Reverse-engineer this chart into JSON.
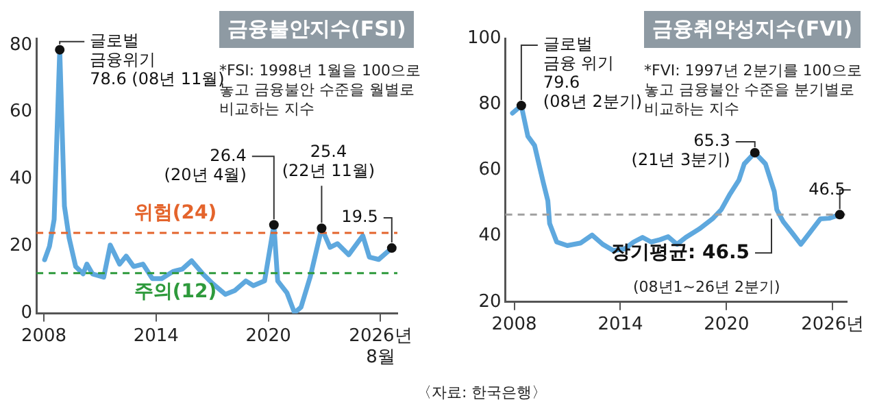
{
  "chart_data": [
    {
      "type": "line",
      "title": "금융불안지수(FSI)",
      "xlim": [
        2007.6,
        2026.9
      ],
      "xticks": [
        2008,
        2014,
        2020,
        {
          "value": 2026,
          "label": "2026년\n8월"
        }
      ],
      "ylim": [
        0,
        82
      ],
      "yticks": [
        0,
        20,
        40,
        60,
        80
      ],
      "grid": false,
      "legend": false,
      "marker": "none",
      "line_style": "solid",
      "series": [
        {
          "color": "#5ea8de",
          "x": [
            2008.04,
            2008.3,
            2008.55,
            2008.85,
            2009.1,
            2009.35,
            2009.7,
            2010.1,
            2010.3,
            2010.6,
            2011.2,
            2011.55,
            2012.05,
            2012.4,
            2012.8,
            2013.3,
            2013.8,
            2014.3,
            2014.9,
            2015.4,
            2015.9,
            2016.5,
            2017.0,
            2017.7,
            2018.2,
            2018.8,
            2019.2,
            2019.8,
            2020.3,
            2020.5,
            2021.0,
            2021.4,
            2021.75,
            2022.25,
            2022.85,
            2023.3,
            2023.7,
            2024.3,
            2025.05,
            2025.4,
            2025.9,
            2026.6
          ],
          "values": [
            16,
            20,
            28,
            78.6,
            32,
            22.5,
            14,
            11.8,
            14.7,
            11.8,
            10.8,
            20.4,
            14.7,
            17.1,
            14,
            14.7,
            10.4,
            10.4,
            12.5,
            13.2,
            15.7,
            11.8,
            9,
            5.7,
            6.8,
            9.7,
            8.3,
            9.7,
            26.4,
            9.7,
            6.1,
            0.2,
            1.9,
            11.1,
            25.4,
            19.7,
            20.8,
            17.5,
            23.2,
            16.8,
            16.1,
            19.5
          ]
        }
      ],
      "ref_lines": [
        {
          "axis": "y",
          "value": 24,
          "label": "위험(24)",
          "color": "#e4642c",
          "line_style": "dashed"
        },
        {
          "axis": "y",
          "value": 12,
          "label": "주의(12)",
          "color": "#2e9a3c",
          "line_style": "dashed"
        }
      ],
      "annotations": [
        {
          "text": "글로벌\n금융위기\n78.6 (08년 11월)",
          "x": 2008.85,
          "y": 78.6
        },
        {
          "text": "26.4\n(20년 4월)",
          "x": 2020.3,
          "y": 26.4
        },
        {
          "text": "25.4\n(22년 11월)",
          "x": 2022.85,
          "y": 25.4
        },
        {
          "text": "19.5",
          "x": 2026.6,
          "y": 19.5
        },
        "*FSI: 1998년 1월을 100으로 놓고 금융불안 수준을 월별로 비교하는 지수"
      ]
    },
    {
      "type": "line",
      "title": "금융취약성지수(FVI)",
      "xlim": [
        2007.5,
        2026.8
      ],
      "xticks": [
        2008,
        2014,
        2020,
        {
          "value": 2026,
          "label": "2026년"
        }
      ],
      "ylim": [
        20,
        100
      ],
      "yticks": [
        20,
        40,
        60,
        80,
        100
      ],
      "grid": false,
      "legend": false,
      "marker": "none",
      "line_style": "solid",
      "series": [
        {
          "color": "#5ea8de",
          "x": [
            2007.9,
            2008.4,
            2008.77,
            2009.15,
            2009.64,
            2009.9,
            2010.0,
            2010.4,
            2011.0,
            2011.76,
            2012.4,
            2013.0,
            2013.6,
            2014.25,
            2014.75,
            2015.25,
            2015.74,
            2016.24,
            2016.7,
            2017.2,
            2017.7,
            2018.5,
            2019.2,
            2019.7,
            2020.2,
            2020.7,
            2021.0,
            2021.6,
            2022.2,
            2022.7,
            2022.84,
            2023.2,
            2023.7,
            2024.2,
            2024.7,
            2025.3,
            2025.8,
            2026.4
          ],
          "values": [
            77.3,
            79.6,
            70.3,
            67.5,
            56.3,
            50.7,
            43.8,
            38.2,
            37.1,
            37.9,
            40.3,
            37.5,
            35.6,
            36.1,
            38.2,
            39.6,
            38.2,
            38.9,
            39.8,
            37.5,
            39.6,
            42.3,
            45.2,
            48,
            52.8,
            57,
            61.9,
            65.3,
            61.9,
            53.5,
            48,
            44.4,
            41,
            37.5,
            41,
            45.2,
            45.4,
            46.5
          ]
        }
      ],
      "ref_lines": [
        {
          "axis": "y",
          "value": 46.5,
          "label": "장기평균: 46.5",
          "color": "#a0a0a0",
          "line_style": "dashed"
        }
      ],
      "annotations": [
        {
          "text": "글로벌\n금융 위기\n79.6\n(08년 2분기)",
          "x": 2008.4,
          "y": 79.6
        },
        {
          "text": "65.3\n(21년 3분기)",
          "x": 2021.6,
          "y": 65.3
        },
        {
          "text": "46.5",
          "x": 2026.4,
          "y": 46.5
        },
        "(08년1~26년 2분기)",
        "*FVI: 1997년 2분기를 100으로 놓고 금융불안 수준을 분기별로 비교하는 지수",
        "〈자료: 한국은행〉"
      ]
    }
  ]
}
